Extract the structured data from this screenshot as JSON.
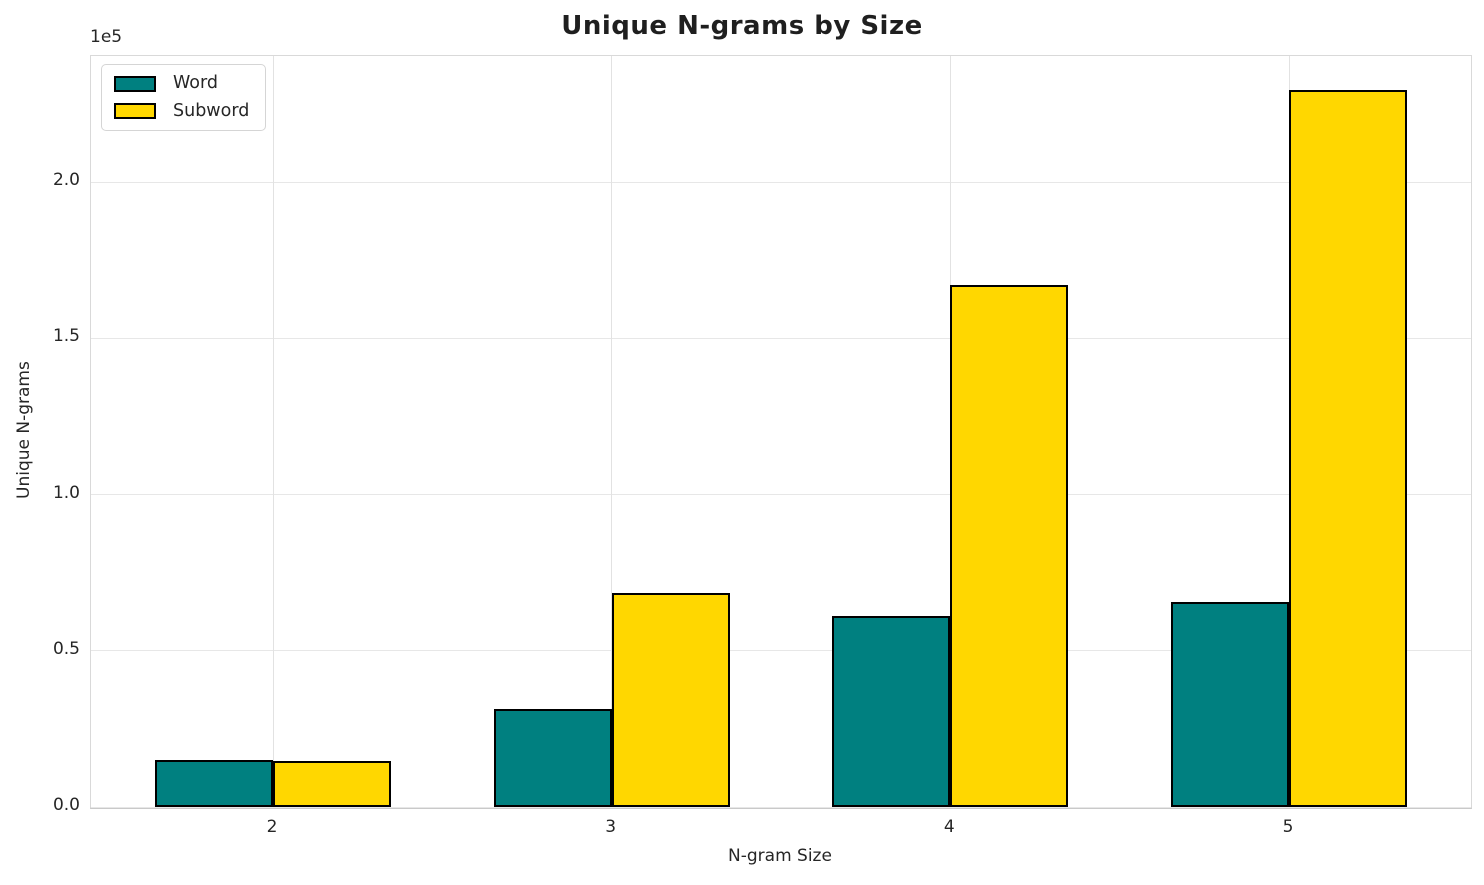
{
  "chart_data": {
    "type": "bar",
    "title": "Unique N-grams by Size",
    "xlabel": "N-gram Size",
    "ylabel": "Unique N-grams",
    "y_offset_label": "1e5",
    "categories": [
      "2",
      "3",
      "4",
      "5"
    ],
    "series": [
      {
        "name": "Word",
        "color": "#008080",
        "values": [
          15000,
          31400,
          61000,
          65600
        ]
      },
      {
        "name": "Subword",
        "color": "#FFD700",
        "values": [
          14600,
          68500,
          167000,
          229400
        ]
      }
    ],
    "y_ticks": [
      {
        "value": 0,
        "label": "0.0"
      },
      {
        "value": 50000,
        "label": "0.5"
      },
      {
        "value": 100000,
        "label": "1.0"
      },
      {
        "value": 150000,
        "label": "1.5"
      },
      {
        "value": 200000,
        "label": "2.0"
      }
    ],
    "ylim": [
      0,
      240000
    ],
    "grid": true,
    "legend_position": "upper left",
    "bar_edgecolor": "#000000"
  }
}
